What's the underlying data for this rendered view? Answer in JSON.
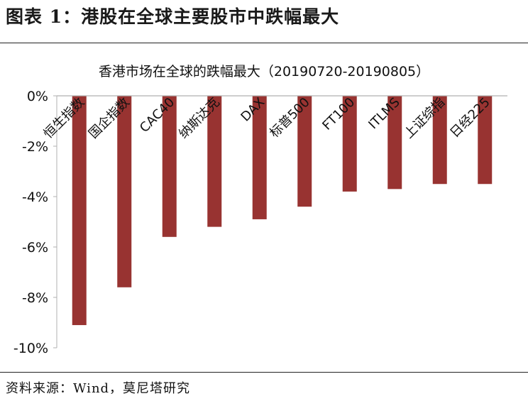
{
  "figure_title": "图表 1：港股在全球主要股市中跌幅最大",
  "source": "资料来源：Wind，莫尼塔研究",
  "colors": {
    "bar": "#983331",
    "axis": "#b0b0b0",
    "text": "#111111"
  },
  "chart_data": {
    "type": "bar",
    "title": "香港市场在全球的跌幅最大（20190720-20190805）",
    "xlabel": "",
    "ylabel": "",
    "categories": [
      "恒生指数",
      "国企指数",
      "CAC40",
      "纳斯达克",
      "DAX",
      "标普500",
      "FT100",
      "ITLMS",
      "上证综指",
      "日经225"
    ],
    "values": [
      -9.1,
      -7.6,
      -5.6,
      -5.2,
      -4.9,
      -4.4,
      -3.8,
      -3.7,
      -3.5,
      -3.5
    ],
    "ylim": [
      -10,
      0
    ],
    "yticks": [
      0,
      -2,
      -4,
      -6,
      -8,
      -10
    ],
    "ytick_labels": [
      "0%",
      "-2%",
      "-4%",
      "-6%",
      "-8%",
      "-10%"
    ],
    "grid": false,
    "legend": "none"
  }
}
